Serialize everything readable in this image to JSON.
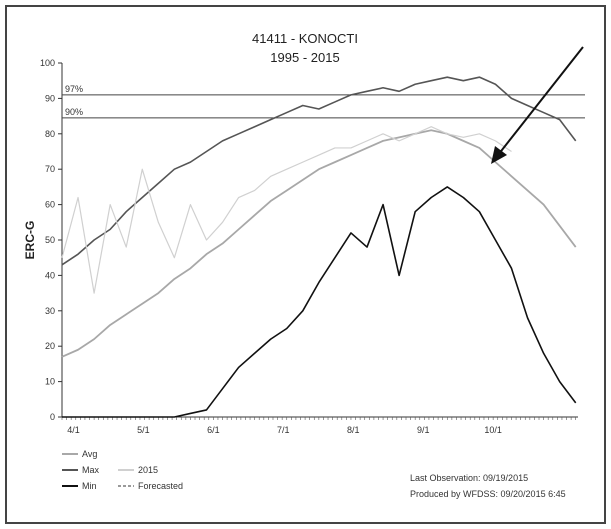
{
  "chart_data": {
    "type": "line",
    "title": "41411 - KONOCTI",
    "subtitle": "1995 - 2015",
    "ylabel": "ERC-G",
    "xlabel": "",
    "ylim": [
      0,
      100
    ],
    "yticks": [
      0,
      10,
      20,
      30,
      40,
      50,
      60,
      70,
      80,
      90,
      100
    ],
    "xticks": [
      "4/1",
      "5/1",
      "6/1",
      "7/1",
      "8/1",
      "9/1",
      "10/1"
    ],
    "grid": false,
    "legend_position": "bottom-left",
    "reference_lines": [
      {
        "label": "97%",
        "value": 91
      },
      {
        "label": "90%",
        "value": 84.5
      }
    ],
    "x_days": [
      0,
      7,
      14,
      21,
      28,
      35,
      42,
      49,
      56,
      63,
      70,
      77,
      84,
      91,
      98,
      105,
      112,
      119,
      126,
      133,
      140,
      147,
      154,
      161,
      168,
      175,
      182,
      189,
      196,
      203,
      210,
      217,
      224
    ],
    "series": [
      {
        "name": "Avg",
        "color": "#a8a8a8",
        "values": [
          17,
          19,
          22,
          26,
          29,
          32,
          35,
          39,
          42,
          46,
          49,
          53,
          57,
          61,
          64,
          67,
          70,
          72,
          74,
          76,
          78,
          79,
          80,
          81,
          80,
          78,
          76,
          72,
          68,
          64,
          60,
          54,
          48
        ]
      },
      {
        "name": "Max",
        "color": "#555555",
        "values": [
          43,
          46,
          50,
          53,
          58,
          62,
          66,
          70,
          72,
          75,
          78,
          80,
          82,
          84,
          86,
          88,
          87,
          89,
          91,
          92,
          93,
          92,
          94,
          95,
          96,
          95,
          96,
          94,
          90,
          88,
          86,
          84,
          78
        ]
      },
      {
        "name": "2015",
        "color": "#d0d0d0",
        "values": [
          45,
          62,
          35,
          60,
          48,
          70,
          55,
          45,
          60,
          50,
          55,
          62,
          64,
          68,
          70,
          72,
          74,
          76,
          76,
          78,
          80,
          78,
          80,
          82,
          80,
          79,
          80,
          78,
          75
        ]
      },
      {
        "name": "Min",
        "color": "#111111",
        "values": [
          0,
          0,
          0,
          0,
          0,
          0,
          0,
          0,
          1,
          2,
          8,
          14,
          18,
          22,
          25,
          30,
          38,
          45,
          52,
          48,
          60,
          40,
          58,
          62,
          65,
          62,
          58,
          50,
          42,
          28,
          18,
          10,
          4
        ]
      },
      {
        "name": "Forecasted",
        "color": "#9a9a9a",
        "values": []
      }
    ],
    "annotations": [
      "Last Observation: 09/19/2015",
      "Produced by WFDSS: 09/20/2015 6:45"
    ]
  }
}
